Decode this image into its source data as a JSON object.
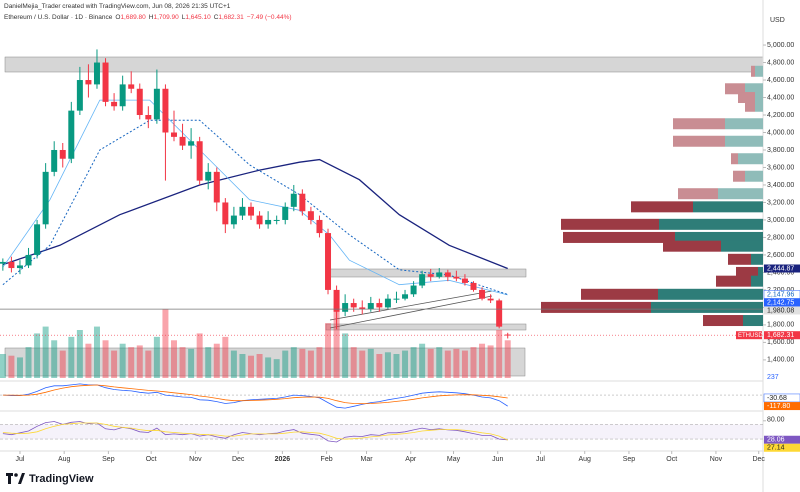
{
  "header": {
    "created": "DanielMejia_Trader created with TradingView.com, Jun 08, 2026 21:35 UTC+1",
    "symbol": "Ethereum / U.S. Dollar · 1D · Binance",
    "quote": [
      {
        "label": "O",
        "value": "1,689.80"
      },
      {
        "label": "H",
        "value": "1,709.90"
      },
      {
        "label": "L",
        "value": "1,645.10"
      },
      {
        "label": "C",
        "value": "1,682.31"
      }
    ],
    "change": "−7.49 (−0.44%)",
    "currency": "USD"
  },
  "footer": {
    "logo": "TradingView"
  },
  "chart_data": {
    "type": "candlestick",
    "up_color": "#089981",
    "down_color": "#f23645",
    "x": [
      -12,
      -6,
      0,
      6,
      12,
      18,
      24,
      30,
      36,
      42,
      48,
      54,
      60,
      66,
      72,
      78,
      84,
      90,
      96,
      102,
      108,
      114,
      120,
      126,
      132,
      138,
      144,
      150,
      156,
      162,
      168,
      174,
      180,
      186,
      192,
      198,
      204,
      210,
      216,
      222,
      228,
      234,
      240,
      246,
      252,
      258,
      264,
      270,
      276,
      282,
      288,
      294,
      300,
      306,
      312,
      318,
      324,
      330,
      336,
      342
    ],
    "open": [
      2500,
      2520,
      2450,
      2480,
      2600,
      2950,
      3550,
      3800,
      3700,
      4250,
      4600,
      4550,
      4800,
      4350,
      4300,
      4550,
      4500,
      4200,
      4150,
      4500,
      4000,
      3950,
      3850,
      3900,
      3450,
      3550,
      3200,
      2950,
      3050,
      3150,
      3050,
      2950,
      3000,
      3000,
      3150,
      3300,
      3100,
      3000,
      2850,
      2200,
      1950,
      2050,
      2000,
      1980,
      2050,
      2000,
      2100,
      2100,
      2150,
      2250,
      2380,
      2350,
      2400,
      2350,
      2330,
      2280,
      2200,
      2100,
      2080,
      1689.8
    ],
    "high": [
      2560,
      2580,
      2540,
      2680,
      3000,
      3650,
      3900,
      3880,
      4350,
      4750,
      4780,
      4950,
      4850,
      4450,
      4650,
      4700,
      4560,
      4300,
      4720,
      4550,
      4250,
      4100,
      4050,
      3950,
      3650,
      3600,
      3250,
      3150,
      3250,
      3200,
      3100,
      3100,
      3050,
      3200,
      3400,
      3350,
      3150,
      3050,
      2900,
      2250,
      2150,
      2100,
      2080,
      2120,
      2100,
      2150,
      2180,
      2200,
      2300,
      2420,
      2440,
      2450,
      2430,
      2420,
      2380,
      2300,
      2230,
      2150,
      2100,
      1709.9
    ],
    "low": [
      2420,
      2400,
      2380,
      2450,
      2560,
      2900,
      3500,
      3600,
      3650,
      4200,
      4400,
      4500,
      4300,
      4250,
      4250,
      4450,
      4150,
      4050,
      4100,
      3450,
      3900,
      3800,
      3700,
      3400,
      3350,
      3100,
      2850,
      2900,
      3000,
      3000,
      2900,
      2900,
      2950,
      2950,
      3100,
      3050,
      2950,
      2800,
      2150,
      1750,
      1900,
      1950,
      1920,
      1950,
      1950,
      1980,
      2050,
      2080,
      2120,
      2220,
      2300,
      2330,
      2300,
      2300,
      2250,
      2180,
      2080,
      2050,
      1760,
      1645.1
    ],
    "close": [
      2520,
      2450,
      2480,
      2600,
      2950,
      3550,
      3800,
      3700,
      4250,
      4600,
      4550,
      4800,
      4350,
      4300,
      4550,
      4500,
      4200,
      4150,
      4500,
      4000,
      3950,
      3850,
      3900,
      3450,
      3550,
      3200,
      2950,
      3050,
      3150,
      3050,
      2950,
      3000,
      3000,
      3150,
      3300,
      3100,
      3000,
      2850,
      2200,
      1950,
      2050,
      2000,
      1980,
      2050,
      2000,
      2100,
      2100,
      2150,
      2250,
      2380,
      2350,
      2400,
      2350,
      2330,
      2280,
      2200,
      2100,
      2080,
      1780,
      1682.31
    ],
    "volume": [
      700,
      650,
      600,
      900,
      1300,
      1500,
      1100,
      800,
      1200,
      1400,
      1000,
      1500,
      1100,
      800,
      1000,
      900,
      950,
      800,
      1200,
      2000,
      1100,
      900,
      850,
      1300,
      900,
      1000,
      1200,
      800,
      700,
      650,
      700,
      600,
      550,
      800,
      900,
      850,
      800,
      900,
      1600,
      2100,
      1300,
      900,
      800,
      850,
      700,
      750,
      700,
      800,
      900,
      1000,
      850,
      900,
      800,
      850,
      800,
      900,
      1000,
      950,
      1400,
      1100
    ],
    "volume_label": "237",
    "xlim": [
      -14,
      521
    ],
    "xticks": [
      {
        "value": 0,
        "label": "Jul"
      },
      {
        "value": 31,
        "label": "Aug"
      },
      {
        "value": 62,
        "label": "Sep"
      },
      {
        "value": 92,
        "label": "Oct"
      },
      {
        "value": 123,
        "label": "Nov"
      },
      {
        "value": 153,
        "label": "Dec"
      },
      {
        "value": 184,
        "label": "2026"
      },
      {
        "value": 215,
        "label": "Feb"
      },
      {
        "value": 243,
        "label": "Mar"
      },
      {
        "value": 274,
        "label": "Apr"
      },
      {
        "value": 304,
        "label": "May"
      },
      {
        "value": 335,
        "label": "Jun"
      },
      {
        "value": 365,
        "label": "Jul"
      },
      {
        "value": 396,
        "label": "Aug"
      },
      {
        "value": 427,
        "label": "Sep"
      },
      {
        "value": 457,
        "label": "Oct"
      },
      {
        "value": 488,
        "label": "Nov"
      },
      {
        "value": 518,
        "label": "Dec"
      }
    ],
    "ylim": [
      1170,
      5515
    ],
    "yticks": [
      {
        "value": 5000,
        "label": "5,000.00"
      },
      {
        "value": 4800,
        "label": "4,800.00"
      },
      {
        "value": 4600,
        "label": "4,600.00"
      },
      {
        "value": 4400,
        "label": "4,400.00"
      },
      {
        "value": 4200,
        "label": "4,200.00"
      },
      {
        "value": 4000,
        "label": "4,000.00"
      },
      {
        "value": 3800,
        "label": "3,800.00"
      },
      {
        "value": 3600,
        "label": "3,600.00"
      },
      {
        "value": 3400,
        "label": "3,400.00"
      },
      {
        "value": 3200,
        "label": "3,200.00"
      },
      {
        "value": 3000,
        "label": "3,000.00"
      },
      {
        "value": 2800,
        "label": "2,800.00"
      },
      {
        "value": 2600,
        "label": "2,600.00"
      },
      {
        "value": 2400,
        "label": "2,400.00"
      },
      {
        "value": 2200,
        "label": "2,200.00"
      },
      {
        "value": 2000,
        "label": "2,000.00"
      },
      {
        "value": 1800,
        "label": "1,800.00"
      },
      {
        "value": 1600,
        "label": "1,600.00"
      },
      {
        "value": 1400,
        "label": "1,400.00"
      }
    ],
    "moving_averages": [
      {
        "color": "#1a237e",
        "width": 1.3,
        "dashed": false,
        "x": [
          -12,
          28,
          70,
          126,
          168,
          196,
          210,
          238,
          266,
          301,
          342
        ],
        "values": [
          2490,
          2710,
          3060,
          3400,
          3570,
          3660,
          3690,
          3460,
          3060,
          2710,
          2444.87
        ]
      },
      {
        "color": "#64b5f6",
        "width": 0.8,
        "dashed": false,
        "x": [
          -12,
          21,
          56,
          91,
          126,
          161,
          196,
          217,
          231,
          266,
          301,
          342
        ],
        "values": [
          2460,
          3230,
          4370,
          4370,
          3800,
          3230,
          3110,
          2830,
          2540,
          2260,
          2310,
          2142.75
        ]
      },
      {
        "color": "#1565c0",
        "width": 1,
        "dashed": true,
        "x": [
          -12,
          21,
          56,
          91,
          126,
          161,
          196,
          231,
          266,
          301,
          342
        ],
        "values": [
          2260,
          2710,
          3800,
          4140,
          4140,
          3630,
          3290,
          2830,
          2430,
          2370,
          2147.96
        ]
      }
    ],
    "markers": [
      {
        "value": 2444.87,
        "label": "2,444.87",
        "color": "#1a237e",
        "text_color": "#ffffff"
      },
      {
        "value": 2147.96,
        "label": "2,147.96",
        "color": "#ffffff",
        "text_color": "#1565c0"
      },
      {
        "value": 2142.75,
        "label": "2,142.75",
        "color": "#2962ff",
        "text_color": "#ffffff"
      },
      {
        "value": 1980.08,
        "label": "1,980.08",
        "color": "#e0e0e0",
        "text_color": "#222222",
        "line": true
      },
      {
        "value": 1682.31,
        "name": "ETHUSD",
        "label": "1,682.31",
        "color": "#f23645",
        "text_color": "#ffffff",
        "line": true
      }
    ],
    "volume_profile": [
      {
        "price": 4700,
        "up": 8,
        "down": 4,
        "value_area": false
      },
      {
        "price": 4500,
        "up": 18,
        "down": 20,
        "value_area": false
      },
      {
        "price": 4400,
        "up": 8,
        "down": 17,
        "value_area": false
      },
      {
        "price": 4300,
        "up": 8,
        "down": 10,
        "value_area": false
      },
      {
        "price": 4100,
        "up": 38,
        "down": 52,
        "value_area": false
      },
      {
        "price": 3900,
        "up": 38,
        "down": 52,
        "value_area": false
      },
      {
        "price": 3700,
        "up": 25,
        "down": 7,
        "value_area": false
      },
      {
        "price": 3500,
        "up": 18,
        "down": 12,
        "value_area": false
      },
      {
        "price": 3300,
        "up": 45,
        "down": 40,
        "value_area": false
      },
      {
        "price": 3150,
        "up": 70,
        "down": 62,
        "value_area": true
      },
      {
        "price": 2950,
        "up": 104,
        "down": 98,
        "value_area": true
      },
      {
        "price": 2800,
        "up": 88,
        "down": 112,
        "value_area": true
      },
      {
        "price": 2700,
        "up": 42,
        "down": 58,
        "value_area": true
      },
      {
        "price": 2550,
        "up": 12,
        "down": 23,
        "value_area": true
      },
      {
        "price": 2400,
        "up": 5,
        "down": 22,
        "value_area": true
      },
      {
        "price": 2300,
        "up": 12,
        "down": 35,
        "value_area": true
      },
      {
        "price": 2150,
        "up": 105,
        "down": 77,
        "value_area": true
      },
      {
        "price": 2000,
        "up": 112,
        "down": 110,
        "value_area": true
      },
      {
        "price": 1850,
        "up": 20,
        "down": 40,
        "value_area": true
      }
    ],
    "macd": {
      "ylim": [
        -160,
        130
      ],
      "macd": {
        "color": "#2962ff",
        "values": [
          0,
          -5,
          -5,
          10,
          40,
          80,
          100,
          100,
          110,
          120,
          110,
          110,
          80,
          60,
          50,
          45,
          30,
          20,
          30,
          0,
          -10,
          -20,
          -25,
          -50,
          -55,
          -70,
          -90,
          -80,
          -60,
          -50,
          -45,
          -40,
          -35,
          -20,
          0,
          -5,
          -15,
          -30,
          -80,
          -130,
          -140,
          -120,
          -100,
          -80,
          -70,
          -50,
          -35,
          -20,
          0,
          20,
          30,
          35,
          30,
          25,
          15,
          0,
          -20,
          -30,
          -60,
          -117.8
        ]
      },
      "signal": {
        "color": "#ff6d00",
        "values": [
          0,
          0,
          -2,
          0,
          10,
          30,
          55,
          75,
          90,
          100,
          105,
          108,
          100,
          88,
          78,
          70,
          60,
          50,
          44,
          35,
          25,
          15,
          5,
          -10,
          -20,
          -35,
          -50,
          -60,
          -60,
          -58,
          -55,
          -50,
          -45,
          -38,
          -28,
          -22,
          -20,
          -22,
          -35,
          -60,
          -80,
          -90,
          -92,
          -90,
          -85,
          -78,
          -68,
          -58,
          -45,
          -30,
          -18,
          -8,
          -2,
          2,
          4,
          3,
          -2,
          -8,
          -18,
          -30.68
        ]
      },
      "markers": [
        {
          "value": -30.68,
          "label": "-30.68",
          "color": "#ffffff",
          "text_color": "#222222"
        },
        {
          "value": -117.8,
          "label": "-117.80",
          "color": "#ff6d00",
          "text_color": "#ffffff"
        }
      ]
    },
    "rsi": {
      "ylim": [
        0,
        100
      ],
      "band": [
        30,
        70
      ],
      "yticks": [
        {
          "value": 80,
          "label": "80.00"
        }
      ],
      "rsi": {
        "color": "#7e57c2",
        "values": [
          45,
          42,
          47,
          52,
          65,
          75,
          78,
          70,
          76,
          78,
          72,
          74,
          58,
          55,
          62,
          58,
          50,
          48,
          60,
          42,
          44,
          42,
          45,
          38,
          42,
          36,
          32,
          42,
          48,
          45,
          42,
          45,
          46,
          52,
          56,
          46,
          43,
          40,
          25,
          22,
          35,
          38,
          37,
          42,
          40,
          47,
          47,
          50,
          55,
          60,
          56,
          58,
          55,
          54,
          50,
          45,
          40,
          40,
          30,
          28.06
        ]
      },
      "rsi_ma": {
        "color": "#fdd835",
        "values": [
          48,
          46,
          45,
          46,
          50,
          58,
          65,
          70,
          72,
          74,
          74,
          74,
          70,
          65,
          62,
          60,
          56,
          53,
          54,
          50,
          48,
          46,
          45,
          43,
          42,
          41,
          38,
          38,
          41,
          44,
          44,
          44,
          44,
          46,
          49,
          50,
          48,
          46,
          40,
          32,
          30,
          31,
          33,
          36,
          38,
          41,
          43,
          45,
          48,
          52,
          54,
          56,
          56,
          56,
          54,
          51,
          47,
          44,
          38,
          27.14
        ]
      },
      "markers": [
        {
          "value": 28.06,
          "label": "28.06",
          "color": "#7e57c2",
          "text_color": "#ffffff"
        },
        {
          "value": 27.14,
          "label": "27.14",
          "color": "#fdd835",
          "text_color": "#222222"
        }
      ]
    }
  }
}
